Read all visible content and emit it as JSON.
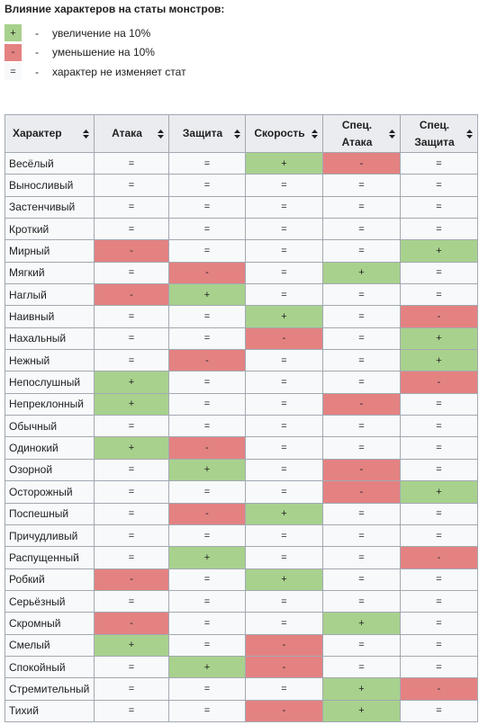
{
  "title": "Влияние характеров на статы монстров:",
  "legend": {
    "separator": "-",
    "items": [
      {
        "symbol": "+",
        "text": "увеличение на 10%",
        "color": "#a8d18d"
      },
      {
        "symbol": "-",
        "text": "уменьшение на 10%",
        "color": "#e48282"
      },
      {
        "symbol": "=",
        "text": "характер не изменяет стат",
        "color": "#f8f9fa"
      }
    ]
  },
  "table": {
    "headers": [
      "Характер",
      "Атака",
      "Защита",
      "Скорость",
      "Спец.\nАтака",
      "Спец.\nЗащита"
    ],
    "rows": [
      [
        "Весёлый",
        "=",
        "=",
        "+",
        "-",
        "="
      ],
      [
        "Выносливый",
        "=",
        "=",
        "=",
        "=",
        "="
      ],
      [
        "Застенчивый",
        "=",
        "=",
        "=",
        "=",
        "="
      ],
      [
        "Кроткий",
        "=",
        "=",
        "=",
        "=",
        "="
      ],
      [
        "Мирный",
        "-",
        "=",
        "=",
        "=",
        "+"
      ],
      [
        "Мягкий",
        "=",
        "-",
        "=",
        "+",
        "="
      ],
      [
        "Наглый",
        "-",
        "+",
        "=",
        "=",
        "="
      ],
      [
        "Наивный",
        "=",
        "=",
        "+",
        "=",
        "-"
      ],
      [
        "Нахальный",
        "=",
        "=",
        "-",
        "=",
        "+"
      ],
      [
        "Нежный",
        "=",
        "-",
        "=",
        "=",
        "+"
      ],
      [
        "Непослушный",
        "+",
        "=",
        "=",
        "=",
        "-"
      ],
      [
        "Непреклонный",
        "+",
        "=",
        "=",
        "-",
        "="
      ],
      [
        "Обычный",
        "=",
        "=",
        "=",
        "=",
        "="
      ],
      [
        "Одинокий",
        "+",
        "-",
        "=",
        "=",
        "="
      ],
      [
        "Озорной",
        "=",
        "+",
        "=",
        "-",
        "="
      ],
      [
        "Осторожный",
        "=",
        "=",
        "=",
        "-",
        "+"
      ],
      [
        "Поспешный",
        "=",
        "-",
        "+",
        "=",
        "="
      ],
      [
        "Причудливый",
        "=",
        "=",
        "=",
        "=",
        "="
      ],
      [
        "Распущенный",
        "=",
        "+",
        "=",
        "=",
        "-"
      ],
      [
        "Робкий",
        "-",
        "=",
        "+",
        "=",
        "="
      ],
      [
        "Серьёзный",
        "=",
        "=",
        "=",
        "=",
        "="
      ],
      [
        "Скромный",
        "-",
        "=",
        "=",
        "+",
        "="
      ],
      [
        "Смелый",
        "+",
        "=",
        "-",
        "=",
        "="
      ],
      [
        "Спокойный",
        "=",
        "+",
        "-",
        "=",
        "="
      ],
      [
        "Стремительный",
        "=",
        "=",
        "=",
        "+",
        "-"
      ],
      [
        "Тихий",
        "=",
        "=",
        "-",
        "+",
        "="
      ]
    ]
  }
}
